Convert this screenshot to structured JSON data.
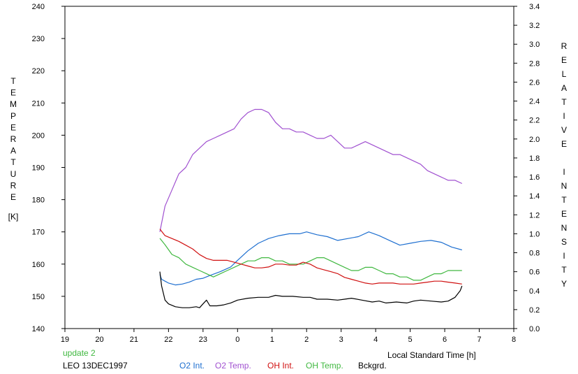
{
  "chart_data": {
    "type": "line",
    "update_label": "update 2",
    "station_label": "LEO 13DEC1997",
    "xlabel": "Local Standard Time [h]",
    "ylabel_left": "TEMPERATURE",
    "ylabel_left_unit": "[K]",
    "ylabel_right": "RELATIVE INTENSITY",
    "xlim": [
      19,
      32
    ],
    "ylim_left": [
      140,
      240
    ],
    "ylim_right": [
      0.0,
      3.4
    ],
    "x_ticks": [
      "19",
      "20",
      "21",
      "22",
      "23",
      "0",
      "1",
      "2",
      "3",
      "4",
      "5",
      "6",
      "7",
      "8"
    ],
    "y_left_ticks": [
      "140",
      "150",
      "160",
      "170",
      "180",
      "190",
      "200",
      "210",
      "220",
      "230",
      "240"
    ],
    "y_right_ticks": [
      "0.0",
      "0.2",
      "0.4",
      "0.6",
      "0.8",
      "1.0",
      "1.2",
      "1.4",
      "1.6",
      "1.8",
      "2.0",
      "2.2",
      "2.4",
      "2.6",
      "2.8",
      "3.0",
      "3.2",
      "3.4"
    ],
    "grid": false,
    "legend_position": "bottom",
    "series": [
      {
        "name": "O2 Int.",
        "color": "#1e6fd0",
        "axis": "right",
        "x": [
          21.75,
          21.8,
          21.9,
          22.0,
          22.2,
          22.4,
          22.6,
          22.8,
          23.0,
          23.2,
          23.5,
          23.8,
          24.0,
          24.3,
          24.6,
          24.9,
          25.2,
          25.5,
          25.8,
          26.0,
          26.3,
          26.6,
          26.9,
          27.2,
          27.5,
          27.8,
          28.1,
          28.4,
          28.7,
          29.0,
          29.3,
          29.6,
          29.9,
          30.2,
          30.5
        ],
        "y": [
          0.57,
          0.52,
          0.5,
          0.48,
          0.46,
          0.47,
          0.49,
          0.52,
          0.53,
          0.56,
          0.6,
          0.65,
          0.72,
          0.82,
          0.9,
          0.95,
          0.98,
          1.0,
          1.0,
          1.02,
          0.99,
          0.97,
          0.93,
          0.95,
          0.97,
          1.02,
          0.98,
          0.93,
          0.88,
          0.9,
          0.92,
          0.93,
          0.91,
          0.86,
          0.83
        ]
      },
      {
        "name": "O2 Temp.",
        "color": "#a050d0",
        "axis": "left",
        "x": [
          21.75,
          21.9,
          22.1,
          22.3,
          22.5,
          22.7,
          22.9,
          23.1,
          23.3,
          23.5,
          23.7,
          23.9,
          24.1,
          24.3,
          24.5,
          24.7,
          24.9,
          25.1,
          25.3,
          25.5,
          25.7,
          25.9,
          26.1,
          26.3,
          26.5,
          26.7,
          26.9,
          27.1,
          27.3,
          27.5,
          27.7,
          27.9,
          28.1,
          28.3,
          28.5,
          28.7,
          28.9,
          29.1,
          29.3,
          29.5,
          29.7,
          29.9,
          30.1,
          30.3,
          30.5
        ],
        "y": [
          170,
          178,
          183,
          188,
          190,
          194,
          196,
          198,
          199,
          200,
          201,
          202,
          205,
          207,
          208,
          208,
          207,
          204,
          202,
          202,
          201,
          201,
          200,
          199,
          199,
          200,
          198,
          196,
          196,
          197,
          198,
          197,
          196,
          195,
          194,
          194,
          193,
          192,
          191,
          189,
          188,
          187,
          186,
          186,
          185
        ]
      },
      {
        "name": "OH Int.",
        "color": "#d01010",
        "axis": "right",
        "x": [
          21.75,
          21.9,
          22.1,
          22.3,
          22.5,
          22.7,
          22.9,
          23.1,
          23.3,
          23.5,
          23.7,
          23.9,
          24.1,
          24.3,
          24.5,
          24.7,
          24.9,
          25.1,
          25.3,
          25.5,
          25.7,
          25.9,
          26.1,
          26.3,
          26.5,
          26.7,
          26.9,
          27.1,
          27.3,
          27.5,
          27.7,
          27.9,
          28.1,
          28.3,
          28.5,
          28.7,
          28.9,
          29.1,
          29.3,
          29.5,
          29.7,
          29.9,
          30.1,
          30.3,
          30.5
        ],
        "y": [
          1.05,
          0.98,
          0.95,
          0.92,
          0.88,
          0.84,
          0.78,
          0.74,
          0.72,
          0.72,
          0.72,
          0.7,
          0.68,
          0.66,
          0.64,
          0.64,
          0.65,
          0.68,
          0.68,
          0.67,
          0.67,
          0.7,
          0.68,
          0.64,
          0.62,
          0.6,
          0.58,
          0.54,
          0.52,
          0.5,
          0.48,
          0.47,
          0.48,
          0.48,
          0.48,
          0.47,
          0.47,
          0.47,
          0.48,
          0.49,
          0.5,
          0.5,
          0.49,
          0.48,
          0.47
        ]
      },
      {
        "name": "OH Temp.",
        "color": "#40b840",
        "axis": "left",
        "x": [
          21.75,
          21.9,
          22.1,
          22.3,
          22.5,
          22.7,
          22.9,
          23.1,
          23.3,
          23.5,
          23.7,
          23.9,
          24.1,
          24.3,
          24.5,
          24.7,
          24.9,
          25.1,
          25.3,
          25.5,
          25.7,
          25.9,
          26.1,
          26.3,
          26.5,
          26.7,
          26.9,
          27.1,
          27.3,
          27.5,
          27.7,
          27.9,
          28.1,
          28.3,
          28.5,
          28.7,
          28.9,
          29.1,
          29.3,
          29.5,
          29.7,
          29.9,
          30.1,
          30.3,
          30.5
        ],
        "y": [
          168,
          166,
          163,
          162,
          160,
          159,
          158,
          157,
          156,
          157,
          158,
          159,
          160,
          161,
          161,
          162,
          162,
          161,
          161,
          160,
          160,
          160,
          161,
          162,
          162,
          161,
          160,
          159,
          158,
          158,
          159,
          159,
          158,
          157,
          157,
          156,
          156,
          155,
          155,
          156,
          157,
          157,
          158,
          158,
          158
        ]
      },
      {
        "name": "Bckgrd.",
        "color": "#000000",
        "axis": "right",
        "x": [
          21.75,
          21.8,
          21.9,
          22.0,
          22.2,
          22.4,
          22.6,
          22.8,
          22.9,
          23.0,
          23.1,
          23.2,
          23.4,
          23.6,
          23.8,
          24.0,
          24.3,
          24.6,
          24.9,
          25.1,
          25.3,
          25.6,
          25.9,
          26.1,
          26.3,
          26.6,
          26.9,
          27.1,
          27.3,
          27.6,
          27.9,
          28.1,
          28.3,
          28.6,
          28.9,
          29.1,
          29.3,
          29.6,
          29.9,
          30.1,
          30.3,
          30.45,
          30.5
        ],
        "y": [
          0.6,
          0.45,
          0.3,
          0.26,
          0.23,
          0.22,
          0.22,
          0.23,
          0.22,
          0.26,
          0.3,
          0.24,
          0.24,
          0.25,
          0.27,
          0.3,
          0.32,
          0.33,
          0.33,
          0.35,
          0.34,
          0.34,
          0.33,
          0.33,
          0.31,
          0.31,
          0.3,
          0.31,
          0.32,
          0.3,
          0.28,
          0.29,
          0.27,
          0.28,
          0.27,
          0.29,
          0.3,
          0.29,
          0.28,
          0.29,
          0.33,
          0.4,
          0.45
        ]
      }
    ]
  }
}
